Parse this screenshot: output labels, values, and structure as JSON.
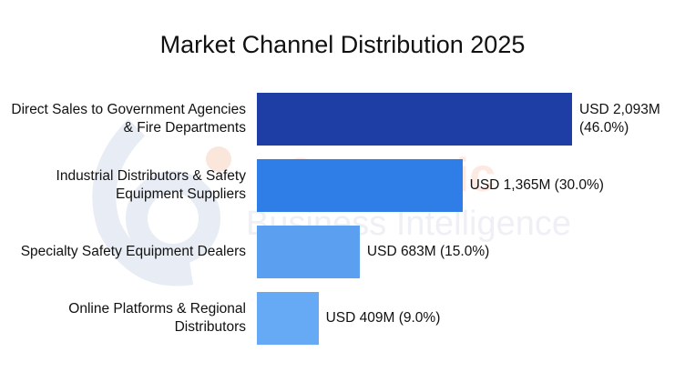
{
  "watermark": {
    "logo_text_1": "Consegic",
    "logo_text_2": "Business Intelligence"
  },
  "chart_data": {
    "type": "bar",
    "orientation": "horizontal",
    "title": "Market Channel Distribution 2025",
    "xlabel": "",
    "ylabel": "",
    "grid": false,
    "categories": [
      "Direct Sales to Government Agencies & Fire Departments",
      "Industrial Distributors & Safety Equipment Suppliers",
      "Specialty Safety Equipment Dealers",
      "Online Platforms & Regional Distributors"
    ],
    "values": [
      2093,
      1365,
      683,
      409
    ],
    "shares_percent": [
      46.0,
      30.0,
      15.0,
      9.0
    ],
    "data_labels": [
      "USD 2,093M (46.0%)",
      "USD 1,365M (30.0%)",
      "USD 683M (15.0%)",
      "USD 409M (9.0%)"
    ],
    "colors": [
      "#1e3ea6",
      "#2f7ee8",
      "#5a9ff0",
      "#66aaf6"
    ],
    "unit": "USD M"
  }
}
